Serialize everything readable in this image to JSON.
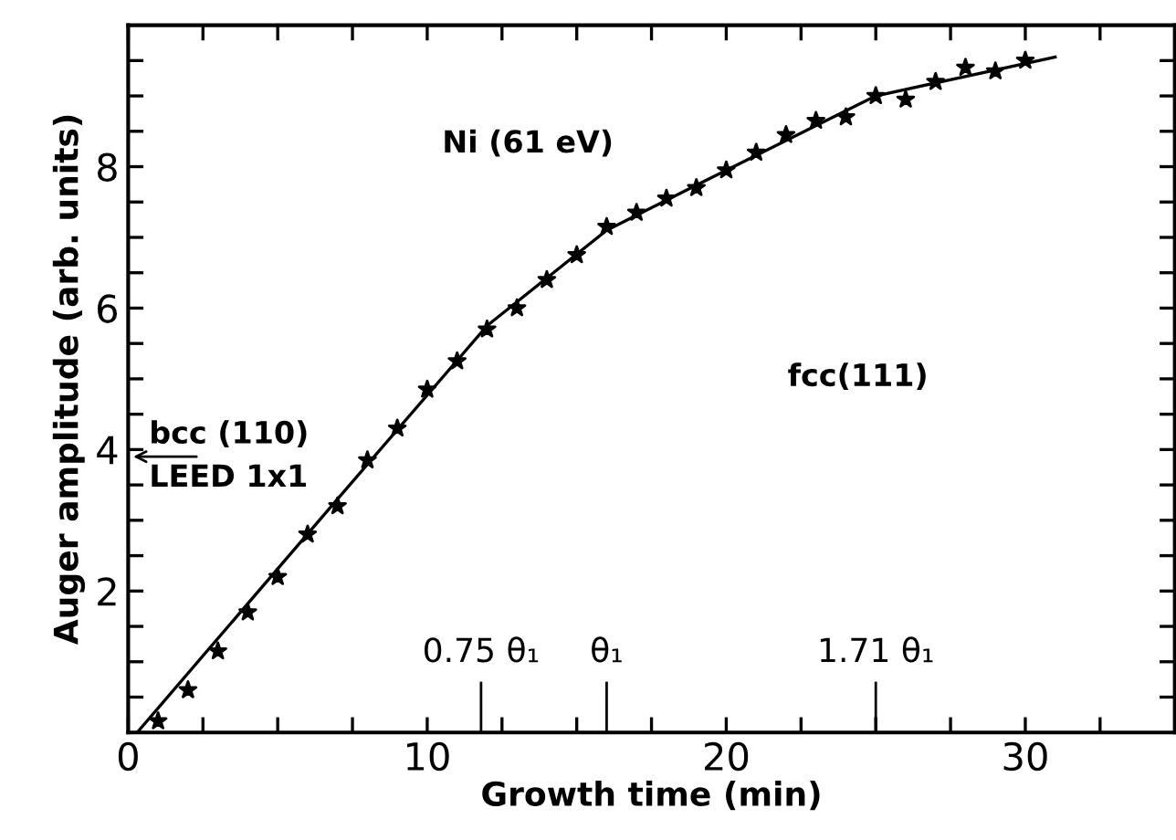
{
  "chart_data": {
    "type": "scatter",
    "xlabel": "Growth time (min)",
    "ylabel": "Auger amplitude (arb. units)",
    "series": [
      {
        "color": "#000000",
        "marker": "star",
        "x": [
          1,
          2,
          3,
          4,
          5,
          6,
          7,
          8,
          9,
          10,
          11,
          12,
          13,
          14,
          15,
          16,
          17,
          18,
          19,
          20,
          21,
          22,
          23,
          24,
          25,
          26,
          27,
          28,
          29,
          30
        ],
        "values": [
          0.16,
          0.6,
          1.15,
          1.7,
          2.2,
          2.8,
          3.2,
          3.85,
          4.3,
          4.85,
          5.25,
          5.7,
          6.0,
          6.4,
          6.75,
          7.15,
          7.35,
          7.55,
          7.7,
          7.95,
          8.2,
          8.45,
          8.65,
          8.7,
          9.0,
          8.95,
          9.2,
          9.4,
          9.35,
          9.5
        ]
      },
      {
        "type": "line",
        "color": "#000000",
        "marker": "none",
        "line_style": "solid",
        "x": [
          0.3,
          7,
          12,
          16,
          20,
          25,
          31
        ],
        "values": [
          0,
          3.3,
          5.75,
          7.1,
          7.95,
          9.0,
          9.55
        ]
      }
    ],
    "xlim": [
      0,
      35
    ],
    "ylim": [
      0,
      10
    ],
    "xticks": [
      0,
      {
        "value": 2.5,
        "label": null
      },
      {
        "value": 5,
        "label": null
      },
      {
        "value": 7.5,
        "label": null
      },
      10,
      {
        "value": 12.5,
        "label": null
      },
      {
        "value": 15,
        "label": null
      },
      {
        "value": 17.5,
        "label": null
      },
      20,
      {
        "value": 22.5,
        "label": null
      },
      {
        "value": 25,
        "label": null
      },
      {
        "value": 27.5,
        "label": null
      },
      30,
      {
        "value": 32.5,
        "label": null
      }
    ],
    "yticks": [
      {
        "value": 0.5,
        "label": null
      },
      {
        "value": 1,
        "label": null
      },
      {
        "value": 1.5,
        "label": null
      },
      2,
      {
        "value": 2.5,
        "label": null
      },
      {
        "value": 3,
        "label": null
      },
      {
        "value": 3.5,
        "label": null
      },
      4,
      {
        "value": 4.5,
        "label": null
      },
      {
        "value": 5,
        "label": null
      },
      {
        "value": 5.5,
        "label": null
      },
      6,
      {
        "value": 6.5,
        "label": null
      },
      {
        "value": 7,
        "label": null
      },
      {
        "value": 7.5,
        "label": null
      },
      8,
      {
        "value": 8.5,
        "label": null
      },
      {
        "value": 9,
        "label": null
      },
      {
        "value": 9.5,
        "label": null
      }
    ],
    "ref_lines": [
      {
        "axis": "x",
        "value": 11.8,
        "label": "0.75 θ₁",
        "color": "#000000"
      },
      {
        "axis": "x",
        "value": 16,
        "label": "θ₁",
        "color": "#000000"
      },
      {
        "axis": "x",
        "value": 25,
        "label": "1.71 θ₁",
        "color": "#000000"
      }
    ],
    "annotations": [
      "Ni (61 eV)",
      "fcc(111)",
      "bcc (110)\nLEED 1x1"
    ],
    "grid": false,
    "legend": false
  }
}
